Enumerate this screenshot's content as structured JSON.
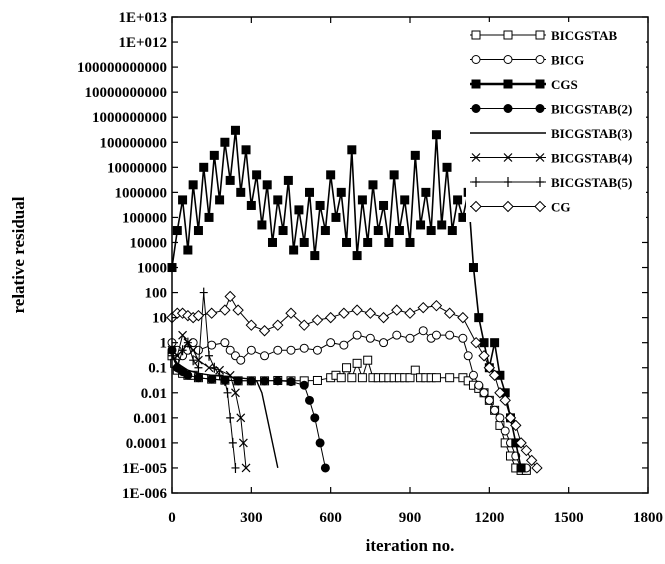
{
  "chart_data": {
    "type": "line",
    "title": "",
    "xlabel": "iteration no.",
    "ylabel": "relative residual",
    "xlim": [
      0,
      1800
    ],
    "ylim_log10": [
      -6,
      13
    ],
    "y_scale": "log",
    "grid": false,
    "legend_position": "top-right",
    "x_ticks": [
      0,
      300,
      600,
      900,
      1200,
      1500,
      1800
    ],
    "x_tick_labels": [
      "0",
      "300",
      "600",
      "900",
      "1200",
      "1500",
      "1800"
    ],
    "y_tick_labels": [
      "1E-006",
      "1E-005",
      "0.0001",
      "0.001",
      "0.01",
      "0.1",
      "1",
      "10",
      "100",
      "1000",
      "10000",
      "100000",
      "1000000",
      "10000000",
      "100000000",
      "1000000000",
      "10000000000",
      "100000000000",
      "1E+012",
      "1E+013"
    ],
    "series": [
      {
        "name": "BICGSTAB",
        "marker": "square-open",
        "x": [
          0,
          10,
          20,
          40,
          60,
          80,
          100,
          150,
          200,
          250,
          300,
          350,
          400,
          450,
          500,
          550,
          600,
          620,
          640,
          660,
          680,
          700,
          720,
          740,
          760,
          780,
          800,
          820,
          840,
          860,
          880,
          900,
          920,
          940,
          960,
          980,
          1000,
          1050,
          1100,
          1120,
          1140,
          1160,
          1180,
          1200,
          1220,
          1240,
          1260,
          1280,
          1300,
          1320,
          1340
        ],
        "y": [
          0.3,
          0.15,
          0.08,
          0.06,
          0.05,
          0.05,
          0.04,
          0.035,
          0.032,
          0.03,
          0.03,
          0.03,
          0.031,
          0.03,
          0.03,
          0.031,
          0.04,
          0.05,
          0.04,
          0.1,
          0.04,
          0.15,
          0.04,
          0.2,
          0.04,
          0.04,
          0.04,
          0.04,
          0.04,
          0.04,
          0.04,
          0.04,
          0.08,
          0.04,
          0.04,
          0.04,
          0.04,
          0.04,
          0.04,
          0.03,
          0.02,
          0.015,
          0.01,
          0.005,
          0.002,
          0.0005,
          0.0001,
          3e-05,
          1e-05,
          8e-06,
          8e-06
        ]
      },
      {
        "name": "BICG",
        "marker": "circle-open",
        "x": [
          0,
          20,
          40,
          60,
          80,
          100,
          150,
          200,
          220,
          240,
          260,
          300,
          350,
          400,
          450,
          500,
          550,
          600,
          650,
          700,
          750,
          800,
          850,
          900,
          950,
          980,
          1000,
          1050,
          1100,
          1120,
          1140,
          1160,
          1180,
          1200,
          1220,
          1240,
          1260,
          1280,
          1300,
          1320,
          1340
        ],
        "y": [
          1,
          0.5,
          0.3,
          0.5,
          1,
          0.5,
          0.8,
          1,
          0.5,
          0.3,
          0.2,
          0.5,
          0.3,
          0.5,
          0.5,
          0.6,
          0.5,
          1,
          0.8,
          2,
          1.5,
          1,
          2,
          1.5,
          3,
          1.5,
          2,
          2,
          1.5,
          0.3,
          0.05,
          0.02,
          0.01,
          0.005,
          0.002,
          0.001,
          0.0003,
          0.0001,
          3e-05,
          1e-05,
          1e-05
        ]
      },
      {
        "name": "CGS",
        "marker": "square-filled",
        "x": [
          0,
          20,
          40,
          60,
          80,
          100,
          120,
          140,
          160,
          180,
          200,
          220,
          240,
          260,
          280,
          300,
          320,
          340,
          360,
          380,
          400,
          420,
          440,
          460,
          480,
          500,
          520,
          540,
          560,
          580,
          600,
          620,
          640,
          660,
          680,
          700,
          720,
          740,
          760,
          780,
          800,
          820,
          840,
          860,
          880,
          900,
          920,
          940,
          960,
          980,
          1000,
          1020,
          1040,
          1060,
          1080,
          1100,
          1120,
          1140,
          1160,
          1180,
          1200,
          1220,
          1240,
          1260,
          1280,
          1300,
          1320
        ],
        "y": [
          1000,
          30000,
          500000,
          5000,
          2000000,
          30000,
          10000000,
          100000,
          30000000,
          500000,
          100000000,
          3000000,
          300000000,
          1000000,
          50000000,
          300000,
          5000000,
          50000,
          2000000,
          10000,
          500000,
          30000,
          3000000,
          5000,
          200000,
          10000,
          1000000,
          3000,
          300000,
          30000,
          5000000,
          100000,
          1000000,
          10000,
          50000000,
          3000,
          500000,
          10000,
          2000000,
          30000,
          300000,
          10000,
          5000000,
          30000,
          500000,
          10000,
          30000000,
          50000,
          1000000,
          30000,
          200000000,
          50000,
          10000000,
          30000,
          500000,
          100000,
          1000000,
          1000,
          10,
          1,
          0.1,
          1,
          0.05,
          0.01,
          0.001,
          0.0001,
          1e-05
        ]
      },
      {
        "name": "BICGSTAB(2)",
        "marker": "circle-filled",
        "x": [
          0,
          20,
          40,
          60,
          100,
          150,
          200,
          250,
          300,
          350,
          400,
          450,
          500,
          520,
          540,
          560,
          580
        ],
        "y": [
          0.5,
          0.1,
          0.07,
          0.05,
          0.04,
          0.035,
          0.032,
          0.03,
          0.03,
          0.03,
          0.03,
          0.028,
          0.02,
          0.005,
          0.001,
          0.0001,
          1e-05
        ]
      },
      {
        "name": "BICGSTAB(3)",
        "marker": "none",
        "x": [
          0,
          20,
          60,
          100,
          150,
          200,
          250,
          300,
          320,
          340,
          360,
          380,
          400
        ],
        "y": [
          0.3,
          0.15,
          0.08,
          0.06,
          0.05,
          0.045,
          0.04,
          0.035,
          0.03,
          0.01,
          0.001,
          0.0001,
          1e-05
        ]
      },
      {
        "name": "BICGSTAB(4)",
        "marker": "x",
        "x": [
          0,
          20,
          40,
          60,
          80,
          100,
          140,
          180,
          220,
          240,
          260,
          270,
          280
        ],
        "y": [
          0.5,
          0.3,
          2,
          1,
          0.5,
          0.2,
          0.1,
          0.08,
          0.05,
          0.01,
          0.001,
          0.0001,
          1e-05
        ]
      },
      {
        "name": "BICGSTAB(5)",
        "marker": "plus",
        "x": [
          0,
          20,
          40,
          60,
          80,
          100,
          120,
          140,
          160,
          180,
          200,
          210,
          220,
          230,
          240
        ],
        "y": [
          0.3,
          0.1,
          0.5,
          1,
          0.2,
          0.1,
          100,
          0.3,
          0.1,
          0.05,
          0.03,
          0.01,
          0.001,
          0.0001,
          1e-05
        ]
      },
      {
        "name": "CG",
        "marker": "diamond-open",
        "x": [
          0,
          20,
          40,
          60,
          80,
          100,
          150,
          200,
          220,
          250,
          300,
          350,
          400,
          450,
          500,
          550,
          600,
          650,
          700,
          750,
          800,
          850,
          900,
          950,
          1000,
          1050,
          1100,
          1150,
          1180,
          1200,
          1220,
          1240,
          1260,
          1280,
          1300,
          1320,
          1340,
          1360,
          1380
        ],
        "y": [
          10,
          15,
          15,
          12,
          10,
          12,
          15,
          20,
          70,
          20,
          5,
          3,
          5,
          15,
          5,
          8,
          10,
          15,
          20,
          15,
          10,
          20,
          15,
          25,
          30,
          15,
          10,
          1,
          0.3,
          0.1,
          0.05,
          0.01,
          0.005,
          0.001,
          0.0005,
          0.0001,
          5e-05,
          2e-05,
          1e-05
        ]
      }
    ]
  }
}
